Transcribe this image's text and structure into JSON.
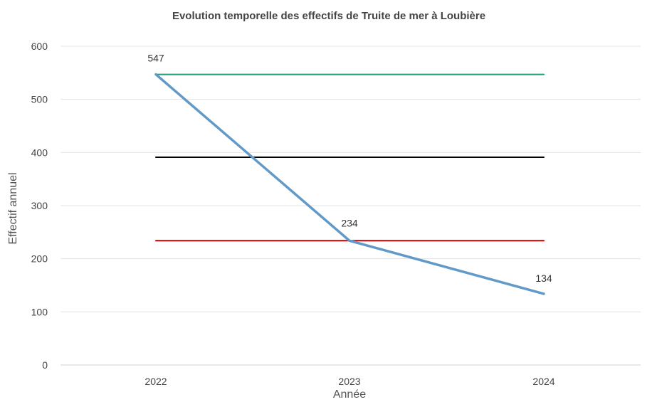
{
  "chart_data": {
    "type": "line",
    "title": "Evolution temporelle des effectifs de Truite de mer à Loubière",
    "xlabel": "Année",
    "ylabel": "Effectif annuel",
    "categories": [
      "2022",
      "2023",
      "2024"
    ],
    "ylim": [
      0,
      600
    ],
    "yticks": [
      0,
      100,
      200,
      300,
      400,
      500,
      600
    ],
    "grid": true,
    "legend": "none",
    "series": [
      {
        "values": [
          547,
          234,
          134
        ],
        "color": "#6199c8",
        "data_labels": [
          "547",
          "234",
          "134"
        ]
      },
      {
        "values": [
          547,
          547,
          547
        ],
        "color": "#1f9e77"
      },
      {
        "values": [
          391,
          391,
          391
        ],
        "color": "#000000"
      },
      {
        "values": [
          234,
          234,
          234
        ],
        "color": "#c00000"
      }
    ]
  }
}
